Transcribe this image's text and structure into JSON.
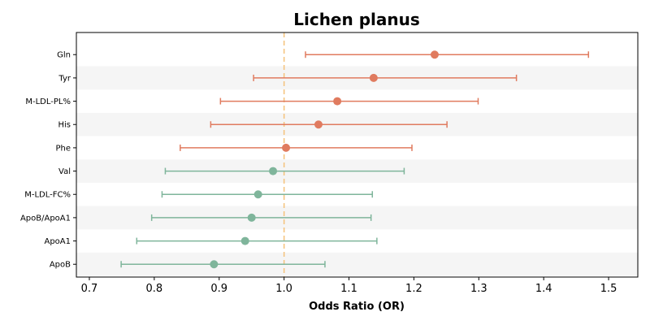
{
  "chart_data": {
    "type": "forest",
    "title": "Lichen planus",
    "xlabel": "Odds Ratio (OR)",
    "ylabel": "",
    "xlim": [
      0.68,
      1.545
    ],
    "xticks": [
      0.7,
      0.8,
      0.9,
      1.0,
      1.1,
      1.2,
      1.3,
      1.4,
      1.5
    ],
    "xtick_labels": [
      "0.7",
      "0.8",
      "0.9",
      "1.0",
      "1.1",
      "1.2",
      "1.3",
      "1.4",
      "1.5"
    ],
    "reference_line": 1.0,
    "grid": false,
    "colors": {
      "risk": "#e07b5f",
      "protective": "#7fb59b",
      "reference": "#f5c27a",
      "band": "#f5f5f5"
    },
    "rows": [
      {
        "label": "Gln",
        "or": 1.232,
        "lower": 1.033,
        "upper": 1.469,
        "group": "risk"
      },
      {
        "label": "Tyr",
        "or": 1.138,
        "lower": 0.953,
        "upper": 1.358,
        "group": "risk"
      },
      {
        "label": "M-LDL-PL%",
        "or": 1.082,
        "lower": 0.902,
        "upper": 1.299,
        "group": "risk"
      },
      {
        "label": "His",
        "or": 1.053,
        "lower": 0.887,
        "upper": 1.251,
        "group": "risk"
      },
      {
        "label": "Phe",
        "or": 1.003,
        "lower": 0.84,
        "upper": 1.197,
        "group": "risk"
      },
      {
        "label": "Val",
        "or": 0.983,
        "lower": 0.817,
        "upper": 1.185,
        "group": "protective"
      },
      {
        "label": "M-LDL-FC%",
        "or": 0.96,
        "lower": 0.812,
        "upper": 1.136,
        "group": "protective"
      },
      {
        "label": "ApoB/ApoA1",
        "or": 0.95,
        "lower": 0.796,
        "upper": 1.134,
        "group": "protective"
      },
      {
        "label": "ApoA1",
        "or": 0.94,
        "lower": 0.773,
        "upper": 1.143,
        "group": "protective"
      },
      {
        "label": "ApoB",
        "or": 0.892,
        "lower": 0.749,
        "upper": 1.063,
        "group": "protective"
      }
    ]
  }
}
